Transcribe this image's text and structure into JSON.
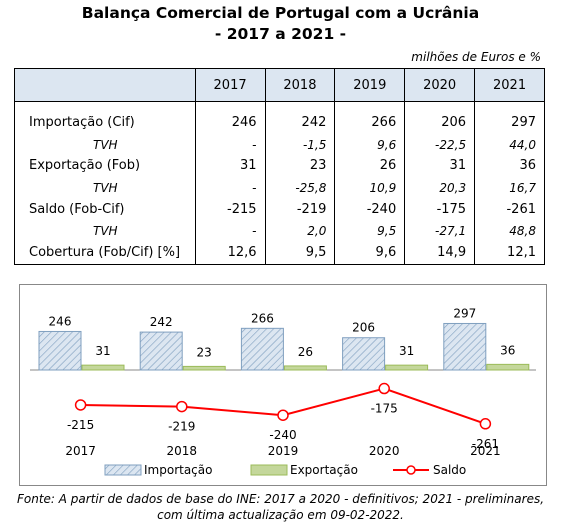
{
  "title_line1": "Balança Comercial de Portugal com a Ucrânia",
  "title_line2": "- 2017 a 2021 -",
  "units": "milhões de Euros e %",
  "table": {
    "years": [
      "2017",
      "2018",
      "2019",
      "2020",
      "2021"
    ],
    "rows": [
      {
        "label": "Importação (Cif)",
        "values": [
          "246",
          "242",
          "266",
          "206",
          "297"
        ],
        "sub": false
      },
      {
        "label": "TVH",
        "values": [
          "-",
          "-1,5",
          "9,6",
          "-22,5",
          "44,0"
        ],
        "sub": true
      },
      {
        "label": "Exportação (Fob)",
        "values": [
          "31",
          "23",
          "26",
          "31",
          "36"
        ],
        "sub": false
      },
      {
        "label": "TVH",
        "values": [
          "-",
          "-25,8",
          "10,9",
          "20,3",
          "16,7"
        ],
        "sub": true
      },
      {
        "label": "Saldo (Fob-Cif)",
        "values": [
          "-215",
          "-219",
          "-240",
          "-175",
          "-261"
        ],
        "sub": false
      },
      {
        "label": "TVH",
        "values": [
          "-",
          "2,0",
          "9,5",
          "-27,1",
          "48,8"
        ],
        "sub": true
      },
      {
        "label": "Cobertura (Fob/Cif) [%]",
        "values": [
          "12,6",
          "9,5",
          "9,6",
          "14,9",
          "12,1"
        ],
        "sub": false
      }
    ]
  },
  "chart_data": {
    "type": "bar",
    "categories": [
      "2017",
      "2018",
      "2019",
      "2020",
      "2021"
    ],
    "series": [
      {
        "name": "Importação",
        "type": "bar",
        "values": [
          246,
          242,
          266,
          206,
          297
        ],
        "color": "#dce6f1",
        "pattern": "diagonal-hatch"
      },
      {
        "name": "Exportação",
        "type": "bar",
        "values": [
          31,
          23,
          26,
          31,
          36
        ],
        "color": "#c4d79b"
      },
      {
        "name": "Saldo",
        "type": "line",
        "values": [
          -215,
          -219,
          -240,
          -175,
          -261
        ],
        "color": "#ff0000"
      }
    ],
    "legend_position": "bottom",
    "grid": false
  },
  "source": {
    "line1": "Fonte: A partir de dados de base do INE: 2017 a 2020 - definitivos; 2021 - preliminares,",
    "line2": "com última actualização em 09-02-2022."
  }
}
